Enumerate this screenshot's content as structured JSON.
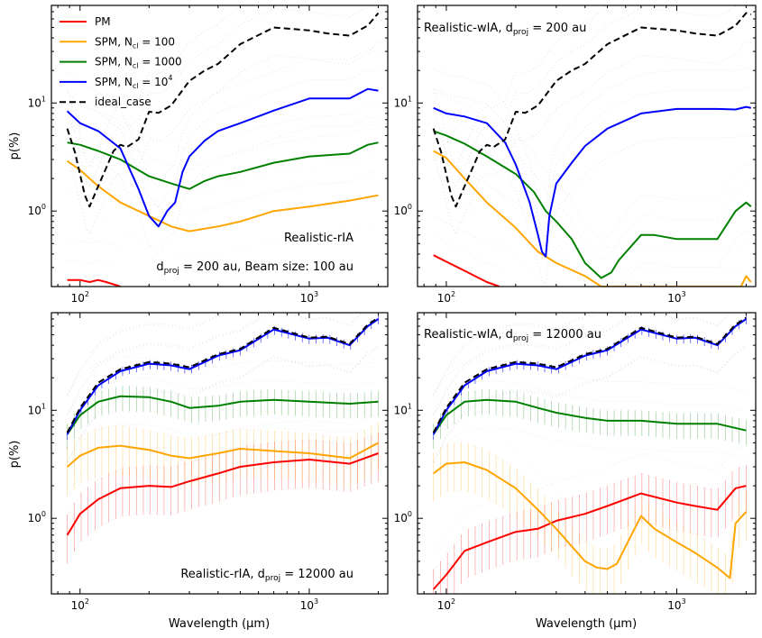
{
  "figure": {
    "ylabel": "p(%)",
    "xlabel": "Wavelength (µm)",
    "colors": {
      "PM": "#ff0000",
      "SPM100": "#ffa500",
      "SPM1000": "#008000",
      "SPM10000": "#0000ff",
      "ideal": "#000000"
    }
  },
  "legend": {
    "items": [
      {
        "key": "PM",
        "label": "PM",
        "sub": "",
        "sup": "",
        "eq": "",
        "dash": false
      },
      {
        "key": "SPM100",
        "label": "SPM, N",
        "sub": "cl",
        "eq": " = 100",
        "sup": "",
        "dash": false
      },
      {
        "key": "SPM1000",
        "label": "SPM, N",
        "sub": "cl",
        "eq": " = 1000",
        "sup": "",
        "dash": false
      },
      {
        "key": "SPM10000",
        "label": "SPM, N",
        "sub": "cl",
        "eq": " = 10",
        "sup": "4",
        "dash": false
      },
      {
        "key": "ideal",
        "label": "ideal_case",
        "sub": "",
        "eq": "",
        "sup": "",
        "dash": true
      }
    ]
  },
  "panel_texts": {
    "p1_a": "Realistic-rIA",
    "p1_b_pre": "d",
    "p1_b_sub": "proj",
    "p1_b_post": " = 200 au, Beam size: 100 au",
    "p2_pre": "Realistic-wIA, d",
    "p2_sub": "proj",
    "p2_post": " = 200 au",
    "p3_pre": "Realistic-rIA, d",
    "p3_sub": "proj",
    "p3_post": " = 12000 au",
    "p4_pre": "Realistic-wIA, d",
    "p4_sub": "proj",
    "p4_post": " = 12000 au"
  },
  "axes": {
    "x_ticks": [
      {
        "value": 100,
        "base": "10",
        "exp": "2"
      },
      {
        "value": 1000,
        "base": "10",
        "exp": "3"
      }
    ],
    "y_ticks": [
      {
        "value": 1,
        "base": "10",
        "exp": "0"
      },
      {
        "value": 10,
        "base": "10",
        "exp": "1"
      }
    ]
  },
  "chart_data": [
    {
      "type": "line",
      "title": "Realistic-rIA, dproj = 200 au, Beam size: 100 au",
      "xscale": "log",
      "yscale": "log",
      "xlim": [
        75,
        2200
      ],
      "ylim": [
        0.2,
        80
      ],
      "xlabel": "",
      "ylabel": "p(%)",
      "series": [
        {
          "name": "PM",
          "x": [
            88,
            100,
            110,
            120,
            130,
            140,
            150
          ],
          "y": [
            0.23,
            0.23,
            0.22,
            0.23,
            0.22,
            0.21,
            0.2
          ]
        },
        {
          "name": "SPM, Ncl = 100",
          "x": [
            88,
            100,
            120,
            150,
            200,
            250,
            300,
            400,
            500,
            700,
            1000,
            1500,
            2000
          ],
          "y": [
            2.9,
            2.4,
            1.7,
            1.2,
            0.9,
            0.72,
            0.65,
            0.72,
            0.8,
            1.0,
            1.1,
            1.25,
            1.4
          ]
        },
        {
          "name": "SPM, Ncl = 1000",
          "x": [
            88,
            100,
            120,
            150,
            200,
            250,
            300,
            350,
            400,
            500,
            700,
            1000,
            1500,
            1800,
            2000
          ],
          "y": [
            4.3,
            4.1,
            3.6,
            3.0,
            2.1,
            1.8,
            1.6,
            1.9,
            2.1,
            2.3,
            2.8,
            3.2,
            3.4,
            4.1,
            4.3
          ]
        },
        {
          "name": "SPM, Ncl = 10^4",
          "x": [
            88,
            100,
            120,
            150,
            180,
            200,
            220,
            240,
            260,
            280,
            300,
            350,
            400,
            500,
            700,
            1000,
            1500,
            1800,
            2000
          ],
          "y": [
            8.4,
            6.5,
            5.5,
            3.8,
            1.6,
            0.9,
            0.72,
            1.0,
            1.2,
            2.3,
            3.2,
            4.5,
            5.5,
            6.5,
            8.5,
            11,
            11,
            13.5,
            13
          ]
        },
        {
          "name": "ideal_case",
          "x": [
            88,
            95,
            105,
            110,
            120,
            130,
            140,
            150,
            160,
            180,
            200,
            220,
            250,
            300,
            350,
            400,
            500,
            700,
            1000,
            1200,
            1500,
            1800,
            2000
          ],
          "y": [
            5.8,
            3.5,
            1.4,
            1.1,
            1.7,
            2.5,
            3.6,
            4.1,
            3.9,
            4.6,
            8.3,
            8.1,
            9.5,
            16,
            20,
            23,
            35,
            50,
            47,
            44,
            42,
            52,
            68
          ]
        }
      ]
    },
    {
      "type": "line",
      "title": "Realistic-wIA, dproj = 200 au",
      "xscale": "log",
      "yscale": "log",
      "xlim": [
        75,
        2200
      ],
      "ylim": [
        0.2,
        80
      ],
      "xlabel": "",
      "ylabel": "",
      "series": [
        {
          "name": "PM",
          "x": [
            88,
            100,
            120,
            150,
            170
          ],
          "y": [
            0.39,
            0.34,
            0.28,
            0.22,
            0.2
          ]
        },
        {
          "name": "SPM, Ncl = 100",
          "x": [
            88,
            100,
            120,
            150,
            200,
            250,
            300,
            400,
            470,
            1900,
            2000,
            2100
          ],
          "y": [
            3.6,
            3.1,
            2.0,
            1.2,
            0.7,
            0.42,
            0.33,
            0.25,
            0.2,
            0.2,
            0.25,
            0.22
          ]
        },
        {
          "name": "SPM, Ncl = 1000",
          "x": [
            88,
            100,
            120,
            150,
            200,
            240,
            270,
            300,
            350,
            400,
            470,
            520,
            560,
            700,
            800,
            1000,
            1500,
            1800,
            2000,
            2100
          ],
          "y": [
            5.5,
            5.0,
            4.2,
            3.2,
            2.2,
            1.5,
            1.0,
            0.8,
            0.55,
            0.33,
            0.24,
            0.27,
            0.35,
            0.6,
            0.6,
            0.55,
            0.55,
            1.0,
            1.2,
            1.1
          ]
        },
        {
          "name": "SPM, Ncl = 10^4",
          "x": [
            88,
            100,
            120,
            150,
            180,
            200,
            230,
            250,
            260,
            270,
            280,
            300,
            350,
            400,
            500,
            700,
            1000,
            1500,
            1800,
            2000,
            2100
          ],
          "y": [
            9.0,
            8.0,
            7.5,
            6.5,
            4.3,
            2.7,
            1.2,
            0.6,
            0.42,
            0.38,
            0.9,
            1.8,
            2.8,
            4.0,
            5.8,
            8.0,
            8.8,
            8.8,
            8.7,
            9.2,
            9.0
          ]
        },
        {
          "name": "ideal_case",
          "x": [
            88,
            95,
            105,
            110,
            120,
            130,
            140,
            150,
            160,
            180,
            200,
            220,
            250,
            300,
            350,
            400,
            500,
            700,
            1000,
            1200,
            1500,
            1800,
            2000,
            2100
          ],
          "y": [
            5.8,
            3.5,
            1.4,
            1.1,
            1.7,
            2.5,
            3.6,
            4.1,
            3.9,
            4.6,
            8.3,
            8.1,
            9.5,
            16,
            20,
            23,
            35,
            50,
            47,
            44,
            42,
            52,
            68,
            66
          ]
        }
      ]
    },
    {
      "type": "line",
      "title": "Realistic-rIA, dproj = 12000 au",
      "xscale": "log",
      "yscale": "log",
      "xlim": [
        75,
        2200
      ],
      "ylim": [
        0.2,
        80
      ],
      "xlabel": "Wavelength (µm)",
      "ylabel": "p(%)",
      "series": [
        {
          "name": "PM",
          "x": [
            88,
            100,
            120,
            150,
            200,
            250,
            300,
            400,
            500,
            700,
            1000,
            1500,
            2000
          ],
          "y": [
            0.7,
            1.1,
            1.5,
            1.9,
            2.0,
            1.95,
            2.2,
            2.6,
            3.0,
            3.3,
            3.5,
            3.2,
            4.0
          ]
        },
        {
          "name": "SPM, Ncl = 100",
          "x": [
            88,
            100,
            120,
            150,
            200,
            250,
            300,
            400,
            500,
            700,
            1000,
            1500,
            2000
          ],
          "y": [
            3.0,
            3.8,
            4.5,
            4.7,
            4.3,
            3.8,
            3.6,
            4.0,
            4.4,
            4.2,
            4.0,
            3.6,
            5.0
          ]
        },
        {
          "name": "SPM, Ncl = 1000",
          "x": [
            88,
            100,
            120,
            150,
            200,
            250,
            300,
            400,
            500,
            700,
            1000,
            1500,
            2000
          ],
          "y": [
            6.0,
            9.0,
            12.0,
            13.5,
            13.2,
            12.0,
            10.5,
            11.0,
            12.0,
            12.5,
            12.0,
            11.5,
            12.0
          ]
        },
        {
          "name": "SPM, Ncl = 10^4",
          "x": [
            88,
            100,
            120,
            150,
            200,
            250,
            300,
            400,
            500,
            700,
            1000,
            1200,
            1500,
            1800,
            2000
          ],
          "y": [
            6.0,
            10.0,
            17.0,
            23.0,
            27.0,
            26.0,
            24.0,
            32.0,
            36.0,
            56.0,
            46.0,
            47.0,
            40.0,
            60.0,
            70.0
          ]
        },
        {
          "name": "ideal_case",
          "x": [
            88,
            100,
            120,
            150,
            200,
            250,
            300,
            400,
            500,
            700,
            1000,
            1200,
            1500,
            1800,
            2000
          ],
          "y": [
            6.2,
            10.5,
            18.0,
            24.0,
            28.0,
            27.0,
            25.0,
            33.0,
            37.0,
            58.0,
            47.0,
            48.0,
            41.0,
            62.0,
            72.0
          ]
        }
      ]
    },
    {
      "type": "line",
      "title": "Realistic-wIA, dproj = 12000 au",
      "xscale": "log",
      "yscale": "log",
      "xlim": [
        75,
        2200
      ],
      "ylim": [
        0.2,
        80
      ],
      "xlabel": "Wavelength (µm)",
      "ylabel": "",
      "series": [
        {
          "name": "PM",
          "x": [
            88,
            100,
            120,
            150,
            200,
            250,
            300,
            400,
            500,
            700,
            1000,
            1200,
            1500,
            1800,
            2000
          ],
          "y": [
            0.22,
            0.3,
            0.5,
            0.6,
            0.75,
            0.8,
            0.95,
            1.1,
            1.3,
            1.7,
            1.4,
            1.3,
            1.2,
            1.9,
            2.0
          ]
        },
        {
          "name": "SPM, Ncl = 100",
          "x": [
            88,
            100,
            120,
            150,
            200,
            250,
            300,
            350,
            400,
            450,
            500,
            550,
            600,
            700,
            800,
            1000,
            1200,
            1500,
            1700,
            1800,
            2000
          ],
          "y": [
            2.6,
            3.2,
            3.3,
            2.8,
            1.9,
            1.2,
            0.8,
            0.55,
            0.4,
            0.35,
            0.34,
            0.38,
            0.55,
            1.05,
            0.8,
            0.6,
            0.48,
            0.35,
            0.28,
            0.9,
            1.15
          ]
        },
        {
          "name": "SPM, Ncl = 1000",
          "x": [
            88,
            100,
            120,
            150,
            200,
            250,
            300,
            400,
            500,
            700,
            1000,
            1500,
            2000
          ],
          "y": [
            6.0,
            9.0,
            12.0,
            12.5,
            12.0,
            10.5,
            9.5,
            8.5,
            8.0,
            8.0,
            7.5,
            7.5,
            6.5
          ]
        },
        {
          "name": "SPM, Ncl = 10^4",
          "x": [
            88,
            100,
            120,
            150,
            200,
            250,
            300,
            400,
            500,
            700,
            1000,
            1200,
            1500,
            1800,
            2000
          ],
          "y": [
            6.0,
            10.0,
            17.0,
            23.0,
            27.0,
            26.0,
            24.0,
            32.0,
            36.0,
            56.0,
            46.0,
            47.0,
            40.0,
            60.0,
            70.0
          ]
        },
        {
          "name": "ideal_case",
          "x": [
            88,
            100,
            120,
            150,
            200,
            250,
            300,
            400,
            500,
            700,
            1000,
            1200,
            1500,
            1800,
            2000
          ],
          "y": [
            6.2,
            10.5,
            18.0,
            24.0,
            28.0,
            27.0,
            25.0,
            33.0,
            37.0,
            58.0,
            47.0,
            48.0,
            41.0,
            62.0,
            72.0
          ]
        }
      ]
    }
  ]
}
